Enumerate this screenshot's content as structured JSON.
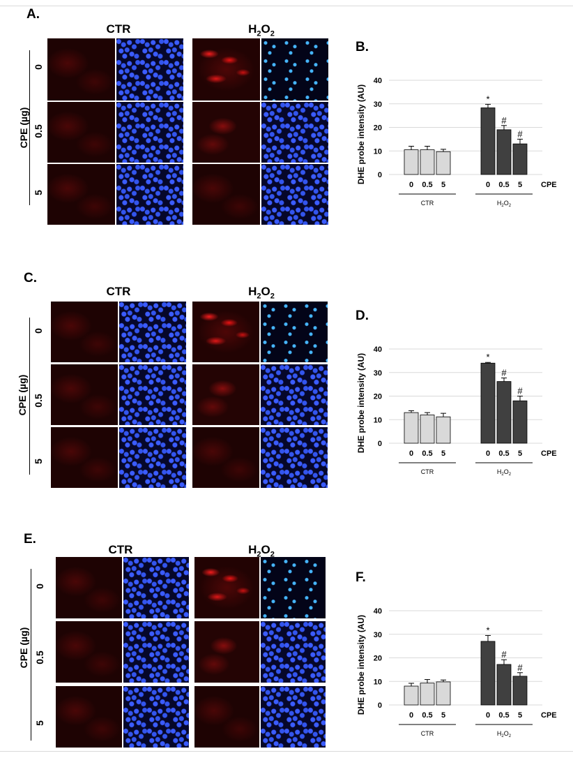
{
  "panels": [
    {
      "label": "A.",
      "col1": "CTR",
      "col2": "H",
      "col2sub1": "2",
      "col2mid": "O",
      "col2sub2": "2",
      "cpe": "CPE (µg)",
      "doses": [
        "0",
        "0.5",
        "5"
      ]
    },
    {
      "label": "C.",
      "col1": "CTR",
      "col2": "H",
      "col2sub1": "2",
      "col2mid": "O",
      "col2sub2": "2",
      "cpe": "CPE (µg)",
      "doses": [
        "0",
        "0.5",
        "5"
      ]
    },
    {
      "label": "E.",
      "col1": "CTR",
      "col2": "H",
      "col2sub1": "2",
      "col2mid": "O",
      "col2sub2": "2",
      "cpe": "CPE (µg)",
      "doses": [
        "0",
        "0.5",
        "5"
      ]
    }
  ],
  "colors": {
    "ctr_bar": "#d9d9d9",
    "h2o2_bar": "#404040"
  },
  "chart_data": [
    {
      "panel": "B.",
      "type": "bar",
      "ylabel": "DHE probe intensity (AU)",
      "ylim": [
        0,
        40
      ],
      "yticks": [
        "0",
        "10",
        "20",
        "30",
        "40"
      ],
      "x_unit_label": "CPE (µg)",
      "groups": [
        {
          "name": "CTR",
          "categories": [
            "0",
            "0.5",
            "5"
          ],
          "values": [
            10.5,
            10.5,
            9.7
          ],
          "errors": [
            1.5,
            1.5,
            1.0
          ],
          "marks": [
            "",
            "",
            ""
          ]
        },
        {
          "name": "H2O2",
          "categories": [
            "0",
            "0.5",
            "5"
          ],
          "values": [
            28.3,
            19.0,
            13.0
          ],
          "errors": [
            1.5,
            1.8,
            2.0
          ],
          "marks": [
            "*",
            "#",
            "#"
          ]
        }
      ],
      "grid": true
    },
    {
      "panel": "D.",
      "type": "bar",
      "ylabel": "DHE probe intensity (AU)",
      "ylim": [
        0,
        40
      ],
      "yticks": [
        "0",
        "10",
        "20",
        "30",
        "40"
      ],
      "x_unit_label": "CPE (µg)",
      "groups": [
        {
          "name": "CTR",
          "categories": [
            "0",
            "0.5",
            "5"
          ],
          "values": [
            13.0,
            12.0,
            11.2
          ],
          "errors": [
            0.8,
            1.0,
            1.5
          ],
          "marks": [
            "",
            "",
            ""
          ]
        },
        {
          "name": "H2O2",
          "categories": [
            "0",
            "0.5",
            "5"
          ],
          "values": [
            34.0,
            26.2,
            18.0
          ],
          "errors": [
            0.3,
            1.5,
            2.0
          ],
          "marks": [
            "*",
            "#",
            "#"
          ]
        }
      ],
      "grid": true
    },
    {
      "panel": "F.",
      "type": "bar",
      "ylabel": "DHE probe intensity (AU)",
      "ylim": [
        0,
        40
      ],
      "yticks": [
        "0",
        "10",
        "20",
        "30",
        "40"
      ],
      "x_unit_label": "CPE (µg)",
      "groups": [
        {
          "name": "CTR",
          "categories": [
            "0",
            "0.5",
            "5"
          ],
          "values": [
            8.0,
            9.3,
            9.8
          ],
          "errors": [
            1.2,
            1.5,
            0.8
          ],
          "marks": [
            "",
            "",
            ""
          ]
        },
        {
          "name": "H2O2",
          "categories": [
            "0",
            "0.5",
            "5"
          ],
          "values": [
            27.0,
            17.2,
            12.2
          ],
          "errors": [
            2.5,
            2.0,
            1.5
          ],
          "marks": [
            "*",
            "#",
            "#"
          ]
        }
      ],
      "grid": true
    }
  ]
}
